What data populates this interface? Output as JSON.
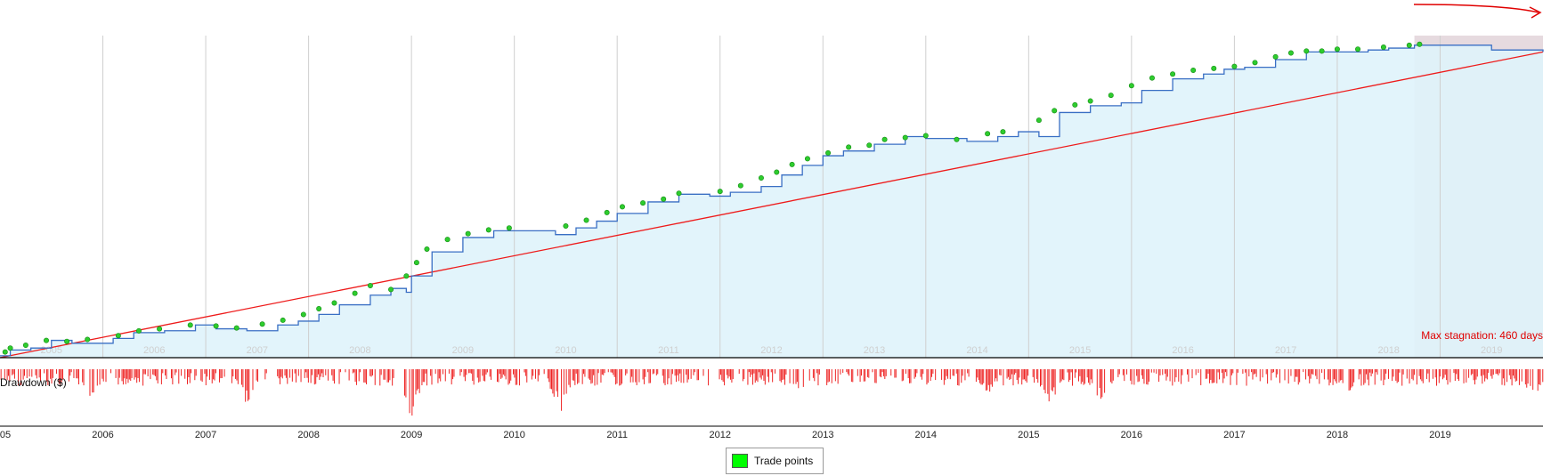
{
  "chart_data": {
    "type": "line",
    "series": [
      {
        "kind": "equity",
        "color": "#3a6fc4",
        "fill": "#dff3fb",
        "x": [
          2005.0,
          2005.1,
          2005.3,
          2005.5,
          2005.7,
          2005.9,
          2006.1,
          2006.3,
          2006.6,
          2006.9,
          2007.1,
          2007.4,
          2007.7,
          2007.9,
          2008.1,
          2008.3,
          2008.6,
          2008.8,
          2008.95,
          2009.0,
          2009.2,
          2009.5,
          2009.8,
          2010.0,
          2010.4,
          2010.6,
          2010.8,
          2011.0,
          2011.3,
          2011.6,
          2011.9,
          2012.1,
          2012.4,
          2012.6,
          2012.8,
          2013.0,
          2013.2,
          2013.5,
          2013.8,
          2014.0,
          2014.4,
          2014.7,
          2014.9,
          2015.1,
          2015.3,
          2015.6,
          2015.9,
          2016.1,
          2016.4,
          2016.7,
          2016.9,
          2017.1,
          2017.4,
          2017.7,
          2018.0,
          2018.3,
          2018.5,
          2018.75,
          2019.0,
          2019.5,
          2020.0
        ],
        "y": [
          2,
          8,
          10,
          18,
          15,
          15,
          20,
          26,
          28,
          34,
          30,
          28,
          34,
          38,
          45,
          55,
          65,
          72,
          68,
          85,
          110,
          125,
          132,
          132,
          128,
          135,
          142,
          150,
          162,
          170,
          168,
          172,
          178,
          190,
          200,
          210,
          215,
          222,
          230,
          228,
          225,
          230,
          235,
          230,
          255,
          262,
          265,
          278,
          290,
          295,
          300,
          302,
          310,
          318,
          318,
          320,
          322,
          325,
          325,
          320,
          318
        ]
      },
      {
        "kind": "trend",
        "color": "#ee1b1b",
        "x": [
          2005.0,
          2020.0
        ],
        "y": [
          0,
          318
        ]
      }
    ],
    "trade_points": {
      "color": "#2ecc2e",
      "x": [
        2005.05,
        2005.1,
        2005.25,
        2005.45,
        2005.65,
        2005.85,
        2006.15,
        2006.35,
        2006.55,
        2006.85,
        2007.1,
        2007.3,
        2007.55,
        2007.75,
        2007.95,
        2008.1,
        2008.25,
        2008.45,
        2008.6,
        2008.8,
        2008.95,
        2009.05,
        2009.15,
        2009.35,
        2009.55,
        2009.75,
        2009.95,
        2010.5,
        2010.7,
        2010.9,
        2011.05,
        2011.25,
        2011.45,
        2011.6,
        2012.0,
        2012.2,
        2012.4,
        2012.55,
        2012.7,
        2012.85,
        2013.05,
        2013.25,
        2013.45,
        2013.6,
        2013.8,
        2014.0,
        2014.3,
        2014.6,
        2014.75,
        2015.1,
        2015.25,
        2015.45,
        2015.6,
        2015.8,
        2016.0,
        2016.2,
        2016.4,
        2016.6,
        2016.8,
        2017.0,
        2017.2,
        2017.4,
        2017.55,
        2017.7,
        2017.85,
        2018.0,
        2018.2,
        2018.45,
        2018.7,
        2018.8
      ],
      "y": [
        5,
        9,
        12,
        17,
        16,
        18,
        22,
        27,
        29,
        33,
        32,
        30,
        34,
        38,
        44,
        50,
        56,
        66,
        74,
        70,
        84,
        98,
        112,
        122,
        128,
        132,
        134,
        136,
        142,
        150,
        156,
        160,
        164,
        170,
        172,
        178,
        186,
        192,
        200,
        206,
        212,
        218,
        220,
        226,
        228,
        230,
        226,
        232,
        234,
        246,
        256,
        262,
        266,
        272,
        282,
        290,
        294,
        298,
        300,
        302,
        306,
        312,
        316,
        318,
        318,
        320,
        320,
        322,
        324,
        325
      ]
    },
    "drawdown": {
      "color": "#ee2222",
      "seed": 7,
      "heavy_x": [
        2005.9,
        2007.4,
        2008.98,
        2010.45,
        2012.8,
        2014.6,
        2015.2,
        2015.7,
        2018.1,
        2019.9
      ],
      "heavy_y": [
        0.6,
        0.65,
        1.0,
        0.8,
        0.45,
        0.5,
        0.7,
        0.6,
        0.45,
        0.55
      ]
    },
    "xlim": [
      2005.0,
      2020.0
    ],
    "ylim": [
      0,
      335
    ],
    "stagnation_start": 2018.75,
    "stagnation_end": 2020.0,
    "stagnation_color": "#e6dadf",
    "background_year_labels": [
      "2005",
      "2006",
      "2007",
      "2008",
      "2009",
      "2010",
      "2011",
      "2012",
      "2013",
      "2014",
      "2015",
      "2016",
      "2017",
      "2018",
      "2019"
    ],
    "axis_year_labels": [
      "05",
      "2006",
      "2007",
      "2008",
      "2009",
      "2010",
      "2011",
      "2012",
      "2013",
      "2014",
      "2015",
      "2016",
      "2017",
      "2018",
      "2019"
    ],
    "grid": true
  },
  "labels": {
    "stagnation": "Max stagnation: 460 days",
    "drawdown": "Drawdown ($)",
    "legend": "Trade points"
  },
  "colors": {
    "grid": "#cfcfcf",
    "axis": "#000000",
    "fill": "#dff3fb",
    "annotation_arrow": "#e00000"
  }
}
